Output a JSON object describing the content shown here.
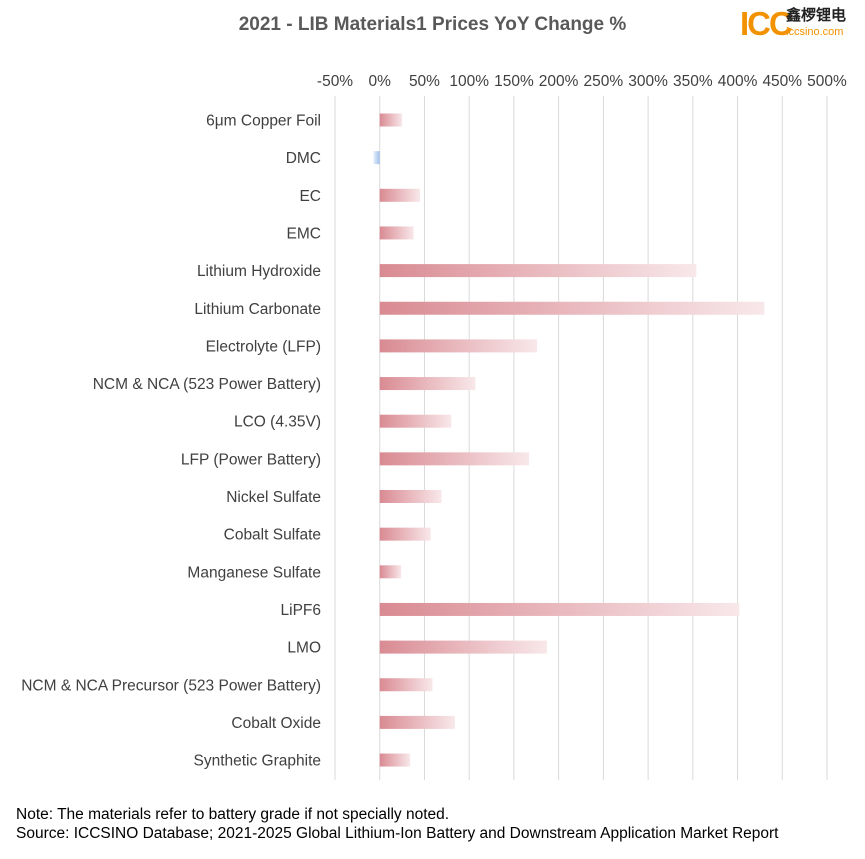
{
  "chart_data": {
    "type": "bar",
    "orientation": "horizontal",
    "title": "2021 - LIB Materials1 Prices YoY Change %",
    "xlabel": "",
    "ylabel": "",
    "xlim": [
      -50,
      500
    ],
    "x_ticks": [
      -50,
      0,
      50,
      100,
      150,
      200,
      250,
      300,
      350,
      400,
      450,
      500
    ],
    "tick_suffix": "%",
    "grid": "vertical",
    "bar_color_positive": "#d98a92",
    "bar_color_negative": "#9fc0ea",
    "categories": [
      "6μm Copper Foil",
      "DMC",
      "EC",
      "EMC",
      "Lithium Hydroxide",
      "Lithium Carbonate",
      "Electrolyte (LFP)",
      "NCM & NCA (523 Power Battery)",
      "LCO  (4.35V)",
      "LFP (Power Battery)",
      "Nickel Sulfate",
      "Cobalt Sulfate",
      "Manganese Sulfate",
      "LiPF6",
      "LMO",
      "NCM & NCA Precursor (523 Power Battery)",
      "Cobalt Oxide",
      "Synthetic Graphite"
    ],
    "values": [
      25,
      -7,
      45,
      38,
      354,
      430,
      176,
      107,
      80,
      167,
      69,
      57,
      24,
      402,
      187,
      59,
      84,
      34
    ]
  },
  "logo": {
    "brand": "ICC",
    "chinese": "鑫椤锂电",
    "url": "iccsino.com"
  },
  "notes": {
    "line1": "Note: The materials refer to battery grade if not specially noted.",
    "line2": "Source: ICCSINO Database; 2021-2025 Global Lithium-Ion Battery and Downstream Application Market Report"
  }
}
